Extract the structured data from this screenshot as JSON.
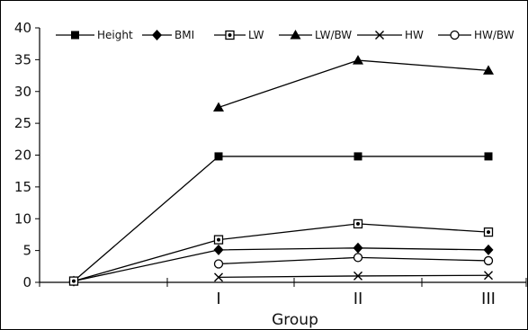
{
  "chart_data": {
    "type": "line",
    "title": "",
    "xlabel": "Group",
    "ylabel": "",
    "ylim": [
      0,
      40
    ],
    "yticks": [
      0,
      5,
      10,
      15,
      20,
      25,
      30,
      35,
      40
    ],
    "categories": [
      "",
      "I",
      "II",
      "III"
    ],
    "legend_position": "top",
    "grid": false,
    "series": [
      {
        "name": "Height",
        "marker": "filled-square",
        "values": [
          0.2,
          19.8,
          19.8,
          19.8
        ]
      },
      {
        "name": "BMI",
        "marker": "filled-diamond",
        "values": [
          0.2,
          5.1,
          5.4,
          5.1
        ]
      },
      {
        "name": "LW",
        "marker": "dotted-square",
        "values": [
          0.2,
          6.7,
          9.2,
          7.9
        ]
      },
      {
        "name": "LW/BW",
        "marker": "filled-triangle",
        "values": [
          null,
          27.5,
          34.9,
          33.3
        ]
      },
      {
        "name": "HW",
        "marker": "cross",
        "values": [
          null,
          0.8,
          1.0,
          1.1
        ]
      },
      {
        "name": "HW/BW",
        "marker": "open-circle",
        "values": [
          null,
          2.9,
          3.9,
          3.4
        ]
      }
    ]
  }
}
